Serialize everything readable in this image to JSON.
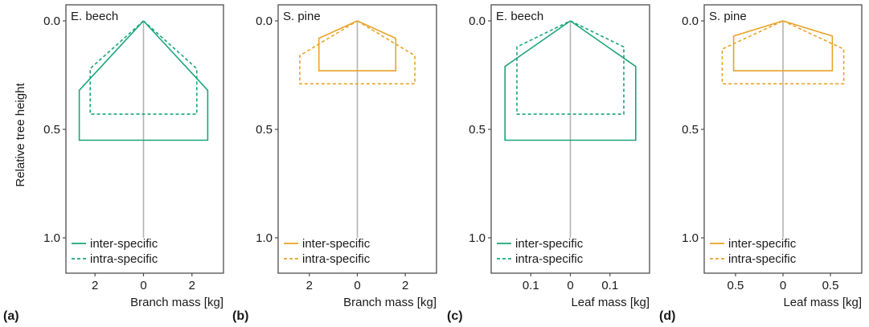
{
  "figure": {
    "y_axis_label": "Relative tree height",
    "legend": [
      "inter-specific",
      "intra-specific"
    ],
    "colors": {
      "beech": "#1aa57a",
      "pine": "#e9a326",
      "stem": "#b3b3b3",
      "frame": "#4d4d4d"
    }
  },
  "chart_data": [
    {
      "type": "line",
      "panel_label": "(a)",
      "species": "E. beech",
      "color_key": "beech",
      "xlabel": "Branch mass [kg]",
      "ylabel": "Relative tree height",
      "xlim": [
        -3.2,
        3.3
      ],
      "ylim": [
        0.0,
        1.0
      ],
      "x_ticks": [
        -2,
        0,
        2
      ],
      "x_tick_labels": [
        "2",
        "0",
        "2"
      ],
      "y_ticks": [
        0.0,
        0.5,
        1.0
      ],
      "y_tick_labels": [
        "0.0",
        "0.5",
        "1.0"
      ],
      "legend": [
        "inter-specific",
        "intra-specific"
      ],
      "legend_position": "bottom-left",
      "series": [
        {
          "name": "inter-specific",
          "dash": "solid",
          "points": [
            [
              0,
              0.0
            ],
            [
              2.65,
              0.32
            ],
            [
              2.65,
              0.55
            ],
            [
              -2.65,
              0.55
            ],
            [
              -2.65,
              0.32
            ],
            [
              0,
              0.0
            ]
          ]
        },
        {
          "name": "intra-specific",
          "dash": "dashed",
          "points": [
            [
              0,
              0.0
            ],
            [
              2.2,
              0.22
            ],
            [
              2.2,
              0.43
            ],
            [
              -2.2,
              0.43
            ],
            [
              -2.2,
              0.22
            ],
            [
              0,
              0.0
            ]
          ]
        }
      ]
    },
    {
      "type": "line",
      "panel_label": "(b)",
      "species": "S. pine",
      "color_key": "pine",
      "xlabel": "Branch mass [kg]",
      "ylabel": "",
      "xlim": [
        -3.3,
        3.3
      ],
      "ylim": [
        0.0,
        1.0
      ],
      "x_ticks": [
        -2,
        0,
        2
      ],
      "x_tick_labels": [
        "2",
        "0",
        "2"
      ],
      "y_ticks": [
        0.0,
        0.5,
        1.0
      ],
      "y_tick_labels": [
        "0.0",
        "0.5",
        "1.0"
      ],
      "legend": [
        "inter-specific",
        "intra-specific"
      ],
      "legend_position": "bottom-left",
      "series": [
        {
          "name": "inter-specific",
          "dash": "solid",
          "points": [
            [
              0,
              0.0
            ],
            [
              1.6,
              0.08
            ],
            [
              1.6,
              0.23
            ],
            [
              -1.6,
              0.23
            ],
            [
              -1.6,
              0.08
            ],
            [
              0,
              0.0
            ]
          ]
        },
        {
          "name": "intra-specific",
          "dash": "dashed",
          "points": [
            [
              0,
              0.0
            ],
            [
              2.4,
              0.16
            ],
            [
              2.4,
              0.29
            ],
            [
              -2.4,
              0.29
            ],
            [
              -2.4,
              0.16
            ],
            [
              0,
              0.0
            ]
          ]
        }
      ]
    },
    {
      "type": "line",
      "panel_label": "(c)",
      "species": "E. beech",
      "color_key": "beech",
      "xlabel": "Leaf mass [kg]",
      "ylabel": "",
      "xlim": [
        -0.2,
        0.2
      ],
      "ylim": [
        0.0,
        1.0
      ],
      "x_ticks": [
        -0.1,
        0,
        0.1
      ],
      "x_tick_labels": [
        "0.1",
        "0",
        "0.1"
      ],
      "y_ticks": [
        0.0,
        0.5,
        1.0
      ],
      "y_tick_labels": [
        "0.0",
        "0.5",
        "1.0"
      ],
      "legend": [
        "inter-specific",
        "intra-specific"
      ],
      "legend_position": "bottom-left",
      "series": [
        {
          "name": "inter-specific",
          "dash": "solid",
          "points": [
            [
              0,
              0.0
            ],
            [
              0.165,
              0.21
            ],
            [
              0.165,
              0.55
            ],
            [
              -0.165,
              0.55
            ],
            [
              -0.165,
              0.21
            ],
            [
              0,
              0.0
            ]
          ]
        },
        {
          "name": "intra-specific",
          "dash": "dashed",
          "points": [
            [
              0,
              0.0
            ],
            [
              0.135,
              0.12
            ],
            [
              0.135,
              0.43
            ],
            [
              -0.135,
              0.43
            ],
            [
              -0.135,
              0.12
            ],
            [
              0,
              0.0
            ]
          ]
        }
      ]
    },
    {
      "type": "line",
      "panel_label": "(d)",
      "species": "S. pine",
      "color_key": "pine",
      "xlabel": "Leaf mass [kg]",
      "ylabel": "",
      "xlim": [
        -0.83,
        0.83
      ],
      "ylim": [
        0.0,
        1.0
      ],
      "x_ticks": [
        -0.5,
        0,
        0.5
      ],
      "x_tick_labels": [
        "0.5",
        "0",
        "0.5"
      ],
      "y_ticks": [
        0.0,
        0.5,
        1.0
      ],
      "y_tick_labels": [
        "0.0",
        "0.5",
        "1.0"
      ],
      "legend": [
        "inter-specific",
        "intra-specific"
      ],
      "legend_position": "bottom-left",
      "series": [
        {
          "name": "inter-specific",
          "dash": "solid",
          "points": [
            [
              0,
              0.0
            ],
            [
              0.52,
              0.07
            ],
            [
              0.52,
              0.23
            ],
            [
              -0.52,
              0.23
            ],
            [
              -0.52,
              0.07
            ],
            [
              0,
              0.0
            ]
          ]
        },
        {
          "name": "intra-specific",
          "dash": "dashed",
          "points": [
            [
              0,
              0.0
            ],
            [
              0.64,
              0.13
            ],
            [
              0.64,
              0.29
            ],
            [
              -0.64,
              0.29
            ],
            [
              -0.64,
              0.13
            ],
            [
              0,
              0.0
            ]
          ]
        }
      ]
    }
  ]
}
